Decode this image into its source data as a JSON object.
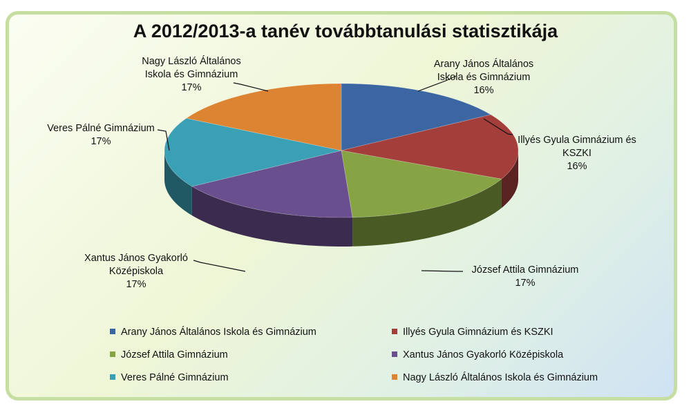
{
  "chart_data": {
    "type": "pie",
    "title": "A 2012/2013-a tanév továbbtanulási statisztikája",
    "legend_position": "bottom",
    "slices": [
      {
        "name": "Arany János Általános Iskola és Gimnázium",
        "label_lines": [
          "Arany János Általános",
          "Iskola és Gimnázium"
        ],
        "value": 16,
        "label": "16%",
        "color": "#3c66a2"
      },
      {
        "name": "Illyés Gyula Gimnázium és KSZKI",
        "label_lines": [
          "Illyés Gyula Gimnázium és",
          "KSZKI"
        ],
        "value": 16,
        "label": "16%",
        "color": "#a43e3b"
      },
      {
        "name": "József Attila Gimnázium",
        "label_lines": [
          "József Attila Gimnázium"
        ],
        "value": 17,
        "label": "17%",
        "color": "#86a443"
      },
      {
        "name": "Xantus János Gyakorló Középiskola",
        "label_lines": [
          "Xantus János Gyakorló",
          "Középiskola"
        ],
        "value": 17,
        "label": "17%",
        "color": "#6a4f8f"
      },
      {
        "name": "Veres Pálné Gimnázium",
        "label_lines": [
          "Veres Pálné Gimnázium"
        ],
        "value": 17,
        "label": "17%",
        "color": "#3aa0b6"
      },
      {
        "name": "Nagy László Általános Iskola és Gimnázium",
        "label_lines": [
          "Nagy László Általános",
          "Iskola és Gimnázium"
        ],
        "value": 17,
        "label": "17%",
        "color": "#dd8433"
      }
    ]
  }
}
